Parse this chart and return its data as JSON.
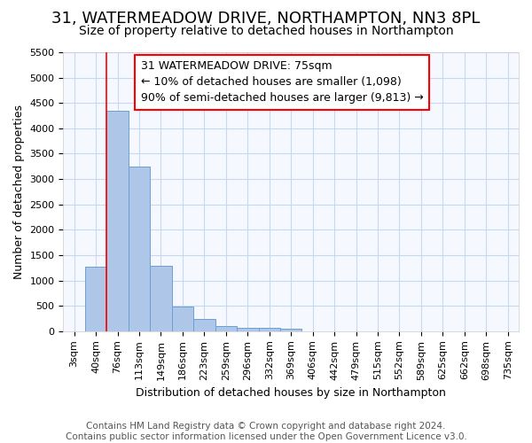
{
  "title": "31, WATERMEADOW DRIVE, NORTHAMPTON, NN3 8PL",
  "subtitle": "Size of property relative to detached houses in Northampton",
  "xlabel": "Distribution of detached houses by size in Northampton",
  "ylabel": "Number of detached properties",
  "footer_line1": "Contains HM Land Registry data © Crown copyright and database right 2024.",
  "footer_line2": "Contains public sector information licensed under the Open Government Licence v3.0.",
  "annotation_line1": "31 WATERMEADOW DRIVE: 75sqm",
  "annotation_line2": "← 10% of detached houses are smaller (1,098)",
  "annotation_line3": "90% of semi-detached houses are larger (9,813) →",
  "categories": [
    "3sqm",
    "40sqm",
    "76sqm",
    "113sqm",
    "149sqm",
    "186sqm",
    "223sqm",
    "259sqm",
    "296sqm",
    "332sqm",
    "369sqm",
    "406sqm",
    "442sqm",
    "479sqm",
    "515sqm",
    "552sqm",
    "589sqm",
    "625sqm",
    "662sqm",
    "698sqm",
    "735sqm"
  ],
  "values": [
    0,
    1280,
    4350,
    3250,
    1290,
    490,
    240,
    100,
    70,
    60,
    55,
    0,
    0,
    0,
    0,
    0,
    0,
    0,
    0,
    0,
    0
  ],
  "bar_color": "#aec6e8",
  "bar_edge_color": "#6b9fd4",
  "red_line_index": 2,
  "ylim": [
    0,
    5500
  ],
  "yticks": [
    0,
    500,
    1000,
    1500,
    2000,
    2500,
    3000,
    3500,
    4000,
    4500,
    5000,
    5500
  ],
  "bg_color": "#ffffff",
  "plot_bg_color": "#f5f8ff",
  "grid_color": "#c8d8ee",
  "title_fontsize": 13,
  "subtitle_fontsize": 10,
  "axis_label_fontsize": 9,
  "tick_fontsize": 8,
  "footer_fontsize": 7.5,
  "annotation_fontsize": 9
}
